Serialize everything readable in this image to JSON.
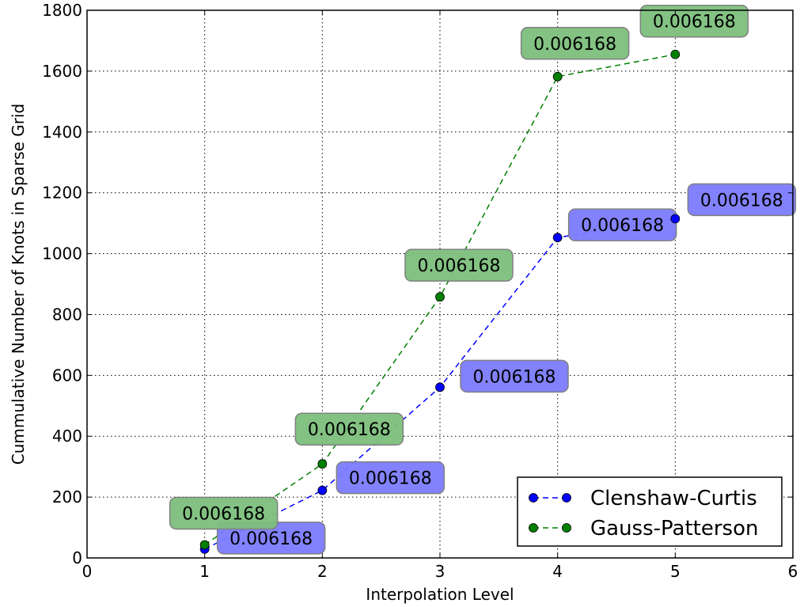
{
  "chart_data": {
    "type": "line",
    "title": "",
    "xlabel": "Interpolation Level",
    "ylabel": "Cummulative Number of Knots in Sparse Grid",
    "xlim": [
      0,
      6
    ],
    "ylim": [
      0,
      1800
    ],
    "xticks": [
      0,
      1,
      2,
      3,
      4,
      5,
      6
    ],
    "yticks": [
      0,
      200,
      400,
      600,
      800,
      1000,
      1200,
      1400,
      1600,
      1800
    ],
    "grid": true,
    "legend_position": "bottom-right",
    "series": [
      {
        "name": "Clenshaw-Curtis",
        "color": "#0000ff",
        "label_fill": "#7b7bff",
        "x": [
          1,
          2,
          3,
          4,
          5
        ],
        "y": [
          29,
          222,
          561,
          1053,
          1115
        ],
        "labels": [
          "0.006168",
          "0.006168",
          "0.006168",
          "0.006168",
          "0.006168"
        ]
      },
      {
        "name": "Gauss-Patterson",
        "color": "#008000",
        "label_fill": "#7cbf7c",
        "x": [
          1,
          2,
          3,
          4,
          5
        ],
        "y": [
          43,
          309,
          858,
          1582,
          1655
        ],
        "labels": [
          "0.006168",
          "0.006168",
          "0.006168",
          "0.006168",
          "0.006168"
        ]
      }
    ]
  }
}
